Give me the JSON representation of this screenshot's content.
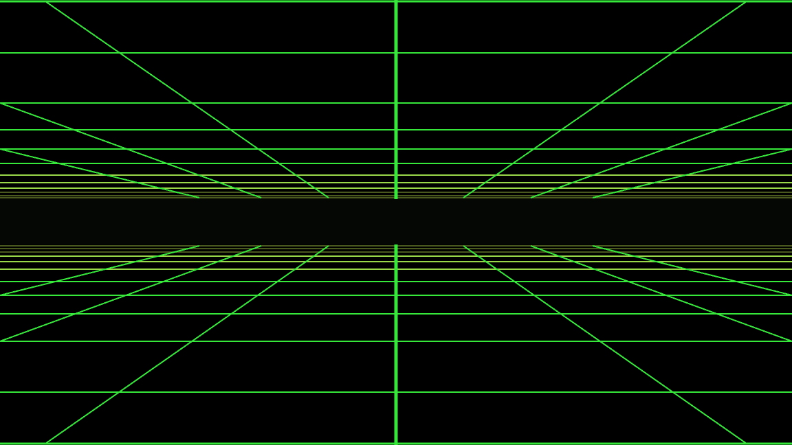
{
  "scene": {
    "type": "perspective-wireframe-tunnel",
    "colors": {
      "background": "#000000",
      "near_line": "#35e83a",
      "mid_line": "#9ad84a",
      "far_line": "#4a5a1e",
      "horizon_band": "#050705"
    },
    "planes": [
      "ceiling",
      "floor"
    ],
    "horizon": "center",
    "vertical_divider": true
  }
}
